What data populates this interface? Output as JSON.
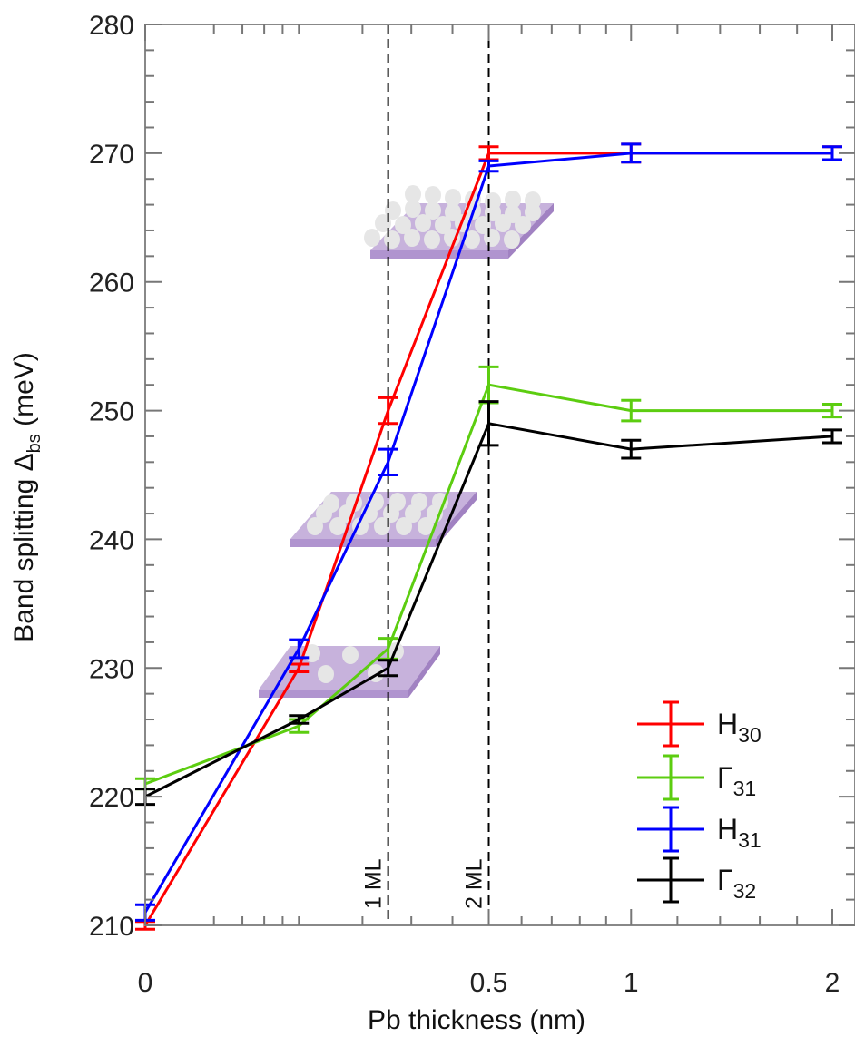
{
  "chart_data": {
    "type": "line",
    "xlabel": "Pb thickness (nm)",
    "ylabel_main": "Band splitting Δ",
    "ylabel_sub": "bs",
    "ylabel_unit": " (meV)",
    "xscale": "sqrt",
    "xlim": [
      0,
      2
    ],
    "ylim": [
      210,
      280
    ],
    "x_ticks": [
      0,
      0.5,
      1,
      2
    ],
    "x_tick_labels": [
      "0",
      "0.5",
      "1",
      "2"
    ],
    "y_ticks": [
      210,
      220,
      230,
      240,
      250,
      260,
      270,
      280
    ],
    "y_tick_labels": [
      "210",
      "220",
      "230",
      "240",
      "250",
      "260",
      "270",
      "280"
    ],
    "grid": false,
    "legend_position": "bottom-right",
    "vertical_lines": [
      {
        "x": 0.25,
        "label": "1 ML"
      },
      {
        "x": 0.5,
        "label": "2 ML"
      }
    ],
    "series": [
      {
        "name": "H",
        "sub": "30",
        "color": "#ff0000",
        "x": [
          0,
          0.1,
          0.25,
          0.5,
          1,
          2
        ],
        "y": [
          210,
          230,
          250,
          270,
          270,
          270
        ],
        "err": [
          0.3,
          0.3,
          1.0,
          0.5,
          0.7,
          0.5
        ]
      },
      {
        "name": "Γ",
        "sub": "31",
        "color": "#5ccd10",
        "x": [
          0,
          0.1,
          0.25,
          0.5,
          1,
          2
        ],
        "y": [
          221,
          225.5,
          231.5,
          252,
          250,
          250
        ],
        "err": [
          0.4,
          0.5,
          0.8,
          1.4,
          0.8,
          0.5
        ]
      },
      {
        "name": "H",
        "sub": "31",
        "color": "#0000ff",
        "x": [
          0,
          0.1,
          0.25,
          0.5,
          1,
          2
        ],
        "y": [
          211,
          231.5,
          246,
          269,
          270,
          270
        ],
        "err": [
          0.6,
          0.7,
          1.0,
          0.4,
          0.7,
          0.5
        ]
      },
      {
        "name": "Γ",
        "sub": "32",
        "color": "#000000",
        "x": [
          0,
          0.1,
          0.25,
          0.5,
          1,
          2
        ],
        "y": [
          220,
          226,
          230,
          249,
          247,
          248
        ],
        "err": [
          0.6,
          0.3,
          0.6,
          1.7,
          0.7,
          0.5
        ]
      }
    ]
  }
}
